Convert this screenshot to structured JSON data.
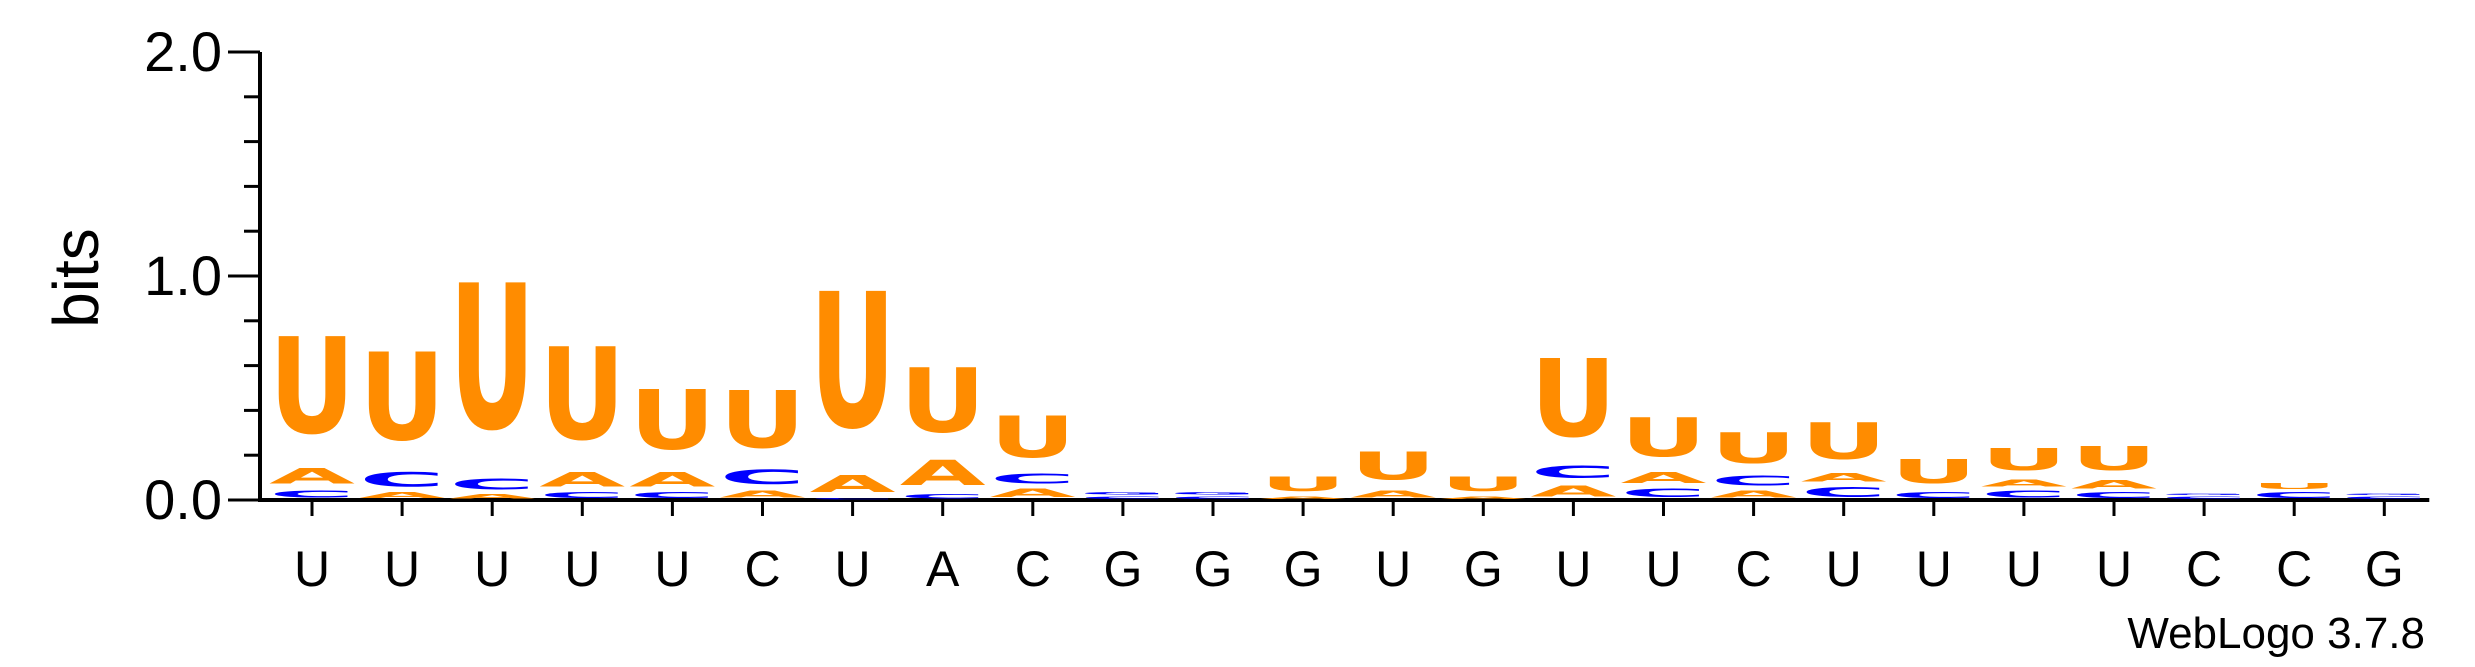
{
  "chart_data": {
    "type": "sequence-logo",
    "ylabel": "bits",
    "ylim": [
      0,
      2.0
    ],
    "y_ticks": [
      "0.0",
      "1.0",
      "2.0"
    ],
    "x_tick_labels": [
      "U",
      "U",
      "U",
      "U",
      "U",
      "C",
      "U",
      "A",
      "C",
      "G",
      "G",
      "G",
      "U",
      "G",
      "U",
      "U",
      "C",
      "U",
      "U",
      "U",
      "U",
      "C",
      "C",
      "G"
    ],
    "colors": {
      "U": "#ff8c00",
      "A": "#ff8c00",
      "C": "#0000ff",
      "G": "#0000ff"
    },
    "positions": [
      [
        {
          "l": "C",
          "h": 0.05
        },
        {
          "l": "A",
          "h": 0.11
        },
        {
          "l": "U",
          "h": 0.69
        }
      ],
      [
        {
          "l": "A",
          "h": 0.04
        },
        {
          "l": "C",
          "h": 0.1
        },
        {
          "l": "U",
          "h": 0.63
        }
      ],
      [
        {
          "l": "A",
          "h": 0.03
        },
        {
          "l": "C",
          "h": 0.08
        },
        {
          "l": "U",
          "h": 1.04
        }
      ],
      [
        {
          "l": "C",
          "h": 0.04
        },
        {
          "l": "A",
          "h": 0.1
        },
        {
          "l": "U",
          "h": 0.66
        }
      ],
      [
        {
          "l": "C",
          "h": 0.04
        },
        {
          "l": "A",
          "h": 0.1
        },
        {
          "l": "U",
          "h": 0.43
        }
      ],
      [
        {
          "l": "A",
          "h": 0.05
        },
        {
          "l": "C",
          "h": 0.1
        },
        {
          "l": "U",
          "h": 0.41
        }
      ],
      [
        {
          "l": "C",
          "h": 0.01
        },
        {
          "l": "A",
          "h": 0.12
        },
        {
          "l": "U",
          "h": 0.97
        }
      ],
      [
        {
          "l": "C",
          "h": 0.03
        },
        {
          "l": "A",
          "h": 0.18
        },
        {
          "l": "U",
          "h": 0.46
        }
      ],
      [
        {
          "l": "A",
          "h": 0.06
        },
        {
          "l": "C",
          "h": 0.07
        },
        {
          "l": "U",
          "h": 0.3
        }
      ],
      [
        {
          "l": "C",
          "h": 0.02
        },
        {
          "l": "G",
          "h": 0.02
        }
      ],
      [
        {
          "l": "C",
          "h": 0.02
        },
        {
          "l": "G",
          "h": 0.02
        }
      ],
      [
        {
          "l": "A",
          "h": 0.02
        },
        {
          "l": "U",
          "h": 0.1
        }
      ],
      [
        {
          "l": "A",
          "h": 0.05
        },
        {
          "l": "U",
          "h": 0.2
        }
      ],
      [
        {
          "l": "A",
          "h": 0.02
        },
        {
          "l": "U",
          "h": 0.1
        }
      ],
      [
        {
          "l": "A",
          "h": 0.08
        },
        {
          "l": "C",
          "h": 0.09
        },
        {
          "l": "U",
          "h": 0.56
        }
      ],
      [
        {
          "l": "C",
          "h": 0.06
        },
        {
          "l": "A",
          "h": 0.08
        },
        {
          "l": "U",
          "h": 0.28
        }
      ],
      [
        {
          "l": "A",
          "h": 0.05
        },
        {
          "l": "C",
          "h": 0.07
        },
        {
          "l": "U",
          "h": 0.22
        }
      ],
      [
        {
          "l": "C",
          "h": 0.07
        },
        {
          "l": "A",
          "h": 0.06
        },
        {
          "l": "U",
          "h": 0.26
        }
      ],
      [
        {
          "l": "C",
          "h": 0.04
        },
        {
          "l": "U",
          "h": 0.17
        }
      ],
      [
        {
          "l": "C",
          "h": 0.05
        },
        {
          "l": "A",
          "h": 0.05
        },
        {
          "l": "U",
          "h": 0.16
        }
      ],
      [
        {
          "l": "C",
          "h": 0.04
        },
        {
          "l": "A",
          "h": 0.06
        },
        {
          "l": "U",
          "h": 0.17
        }
      ],
      [
        {
          "l": "C",
          "h": 0.02
        },
        {
          "l": "G",
          "h": 0.01
        }
      ],
      [
        {
          "l": "C",
          "h": 0.04
        },
        {
          "l": "U",
          "h": 0.04
        }
      ],
      [
        {
          "l": "C",
          "h": 0.02
        },
        {
          "l": "G",
          "h": 0.01
        }
      ]
    ]
  },
  "credit": "WebLogo 3.7.8"
}
